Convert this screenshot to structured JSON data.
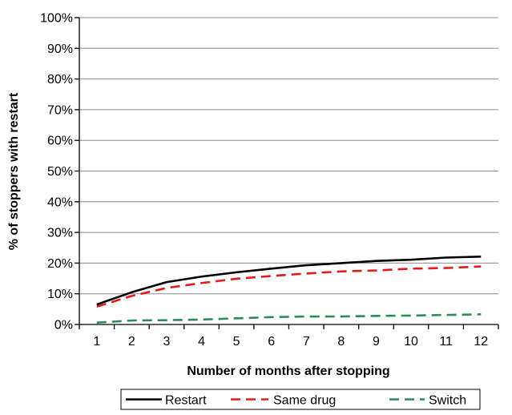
{
  "chart_data": {
    "type": "line",
    "title": "",
    "xlabel": "Number of months after stopping",
    "ylabel": "% of stoppers with restart",
    "x": [
      1,
      2,
      3,
      4,
      5,
      6,
      7,
      8,
      9,
      10,
      11,
      12
    ],
    "x_tick_labels": [
      "1",
      "2",
      "3",
      "4",
      "5",
      "6",
      "7",
      "8",
      "9",
      "10",
      "11",
      "12"
    ],
    "y_ticks": [
      0,
      10,
      20,
      30,
      40,
      50,
      60,
      70,
      80,
      90,
      100
    ],
    "y_tick_labels": [
      "0%",
      "10%",
      "20%",
      "30%",
      "40%",
      "50%",
      "60%",
      "70%",
      "80%",
      "90%",
      "100%"
    ],
    "ylim": [
      0,
      100
    ],
    "y_unit": "%",
    "grid": "horizontal major gridlines",
    "legend_position": "bottom",
    "series": [
      {
        "name": "Restart",
        "color": "#000000",
        "dash": "solid",
        "values": [
          6.5,
          10.5,
          13.8,
          15.6,
          17.0,
          18.2,
          19.3,
          20.0,
          20.7,
          21.1,
          21.8,
          22.1
        ]
      },
      {
        "name": "Same drug",
        "color": "#e31a1c",
        "dash": "dashed",
        "values": [
          5.8,
          9.3,
          11.9,
          13.5,
          14.9,
          15.8,
          16.6,
          17.3,
          17.6,
          18.2,
          18.4,
          18.9
        ]
      },
      {
        "name": "Switch",
        "color": "#2e8b57",
        "dash": "dashed",
        "values": [
          0.6,
          1.3,
          1.4,
          1.6,
          2.0,
          2.4,
          2.6,
          2.6,
          2.8,
          2.9,
          3.1,
          3.3
        ]
      }
    ]
  }
}
